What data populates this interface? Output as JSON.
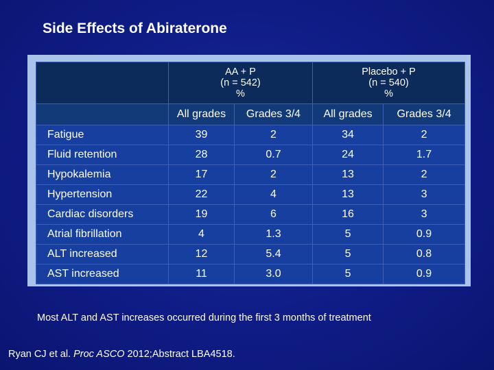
{
  "title": "Side Effects of Abiraterone",
  "table": {
    "group_headers": [
      {
        "line1": "AA + P",
        "line2": "(n = 542)",
        "line3": "%"
      },
      {
        "line1": "Placebo + P",
        "line2": "(n = 540)",
        "line3": "%"
      }
    ],
    "sub_headers": [
      "All grades",
      "Grades 3/4",
      "All grades",
      "Grades 3/4"
    ],
    "rows": [
      {
        "label": "Fatigue",
        "values": [
          "39",
          "2",
          "34",
          "2"
        ]
      },
      {
        "label": "Fluid retention",
        "values": [
          "28",
          "0.7",
          "24",
          "1.7"
        ]
      },
      {
        "label": "Hypokalemia",
        "values": [
          "17",
          "2",
          "13",
          "2"
        ]
      },
      {
        "label": "Hypertension",
        "values": [
          "22",
          "4",
          "13",
          "3"
        ]
      },
      {
        "label": "Cardiac disorders",
        "values": [
          "19",
          "6",
          "16",
          "3"
        ]
      },
      {
        "label": "Atrial fibrillation",
        "values": [
          "4",
          "1.3",
          "5",
          "0.9"
        ]
      },
      {
        "label": "ALT increased",
        "values": [
          "12",
          "5.4",
          "5",
          "0.8"
        ]
      },
      {
        "label": "AST increased",
        "values": [
          "11",
          "3.0",
          "5",
          "0.9"
        ]
      }
    ]
  },
  "note": "Most ALT and AST increases occurred during the first 3 months of treatment",
  "citation": {
    "authors": "Ryan CJ et al.",
    "journal": "Proc ASCO",
    "rest": "2012;Abstract LBA4518."
  },
  "colors": {
    "background": "#0f1c86",
    "frame": "#a9c3ea",
    "header_dark": "#0c2a5a",
    "row": "#163fa0"
  }
}
